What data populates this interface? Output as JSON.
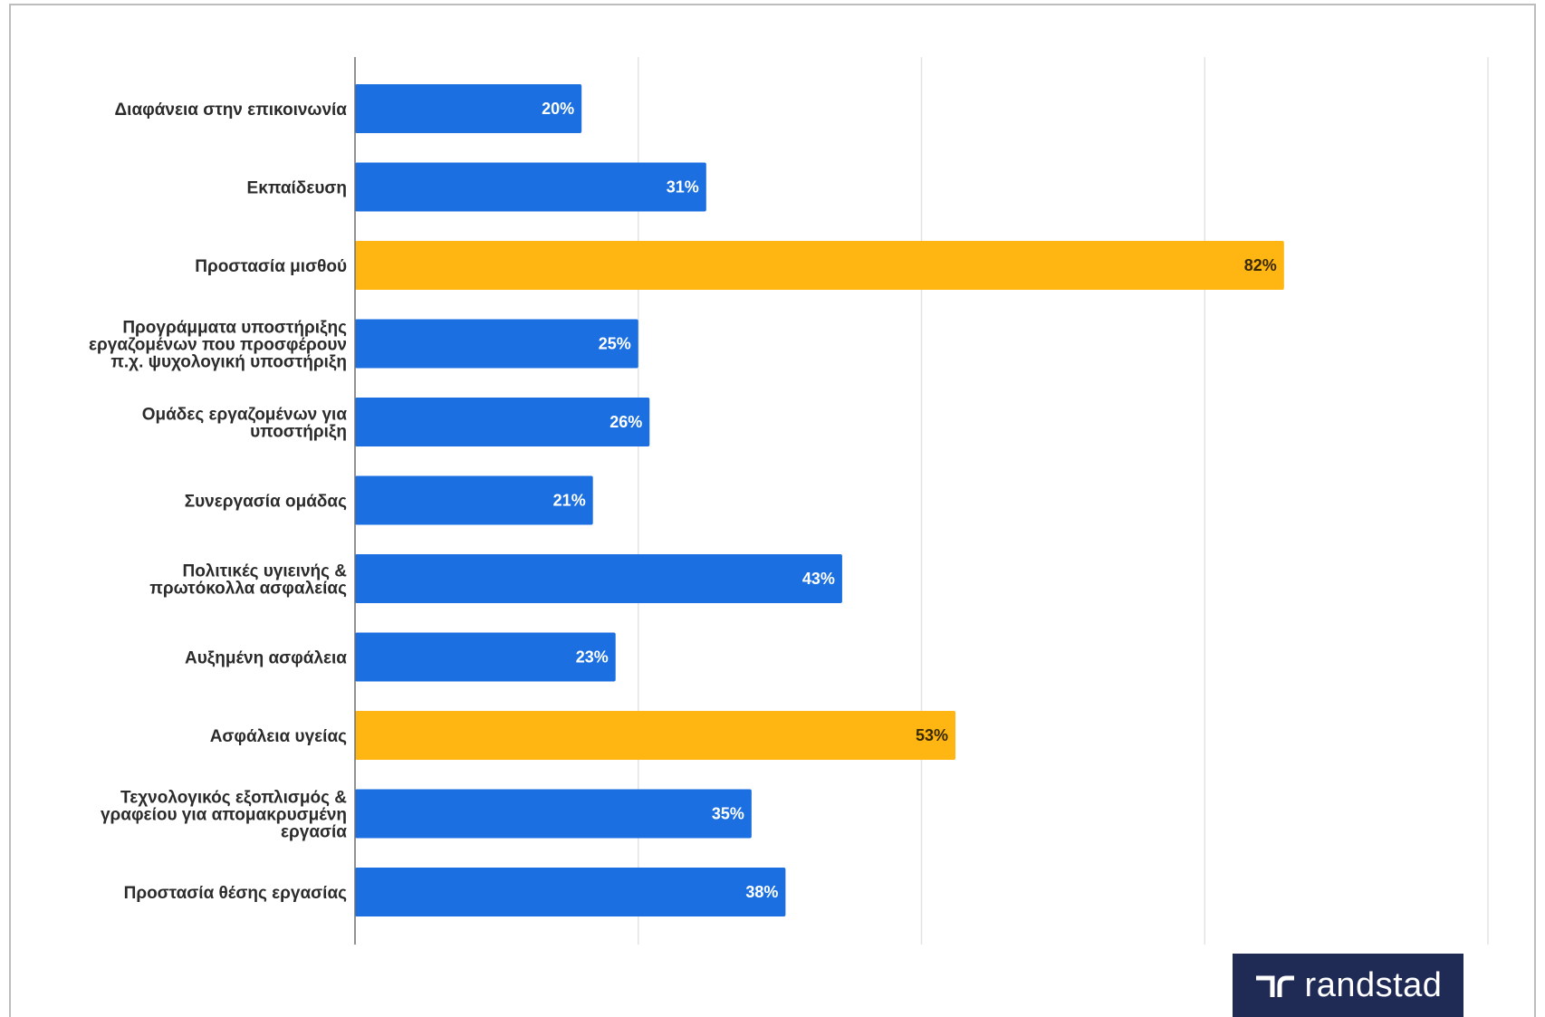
{
  "chart_data": {
    "type": "bar",
    "orientation": "horizontal",
    "categories": [
      [
        "Διαφάνεια στην επικοινωνία"
      ],
      [
        "Εκπαίδευση"
      ],
      [
        "Προστασία μισθού"
      ],
      [
        "Προγράμματα υποστήριξης",
        "εργαζομένων που προσφέρουν",
        "π.χ. ψυχολογική υποστήριξη"
      ],
      [
        "Ομάδες εργαζομένων για",
        "υποστήριξη"
      ],
      [
        "Συνεργασία ομάδας"
      ],
      [
        "Πολιτικές υγιεινής &",
        "πρωτόκολλα ασφαλείας"
      ],
      [
        "Αυξημένη ασφάλεια"
      ],
      [
        "Ασφάλεια υγείας"
      ],
      [
        "Τεχνολογικός εξοπλισμός &",
        "γραφείου για απομακρυσμένη",
        "εργασία"
      ],
      [
        "Προστασία θέσης εργασίας"
      ]
    ],
    "values": [
      20,
      31,
      82,
      25,
      26,
      21,
      43,
      23,
      53,
      35,
      38
    ],
    "value_labels": [
      "20%",
      "31%",
      "82%",
      "25%",
      "26%",
      "21%",
      "43%",
      "23%",
      "53%",
      "35%",
      "38%"
    ],
    "highlighted": [
      false,
      false,
      true,
      false,
      false,
      false,
      false,
      false,
      true,
      false,
      false
    ],
    "xlim": [
      0,
      100
    ],
    "gridlines": [
      0,
      25,
      50,
      75,
      100
    ],
    "grid": true,
    "colors": {
      "default": "#1b6fe0",
      "highlight": "#ffb612",
      "default_label": "#ffffff",
      "highlight_label": "#3a2a00",
      "grid": "#e3e3e3",
      "axis": "#6f6f6f"
    }
  },
  "brand": {
    "name": "randstad",
    "background": "#1f2a55"
  }
}
